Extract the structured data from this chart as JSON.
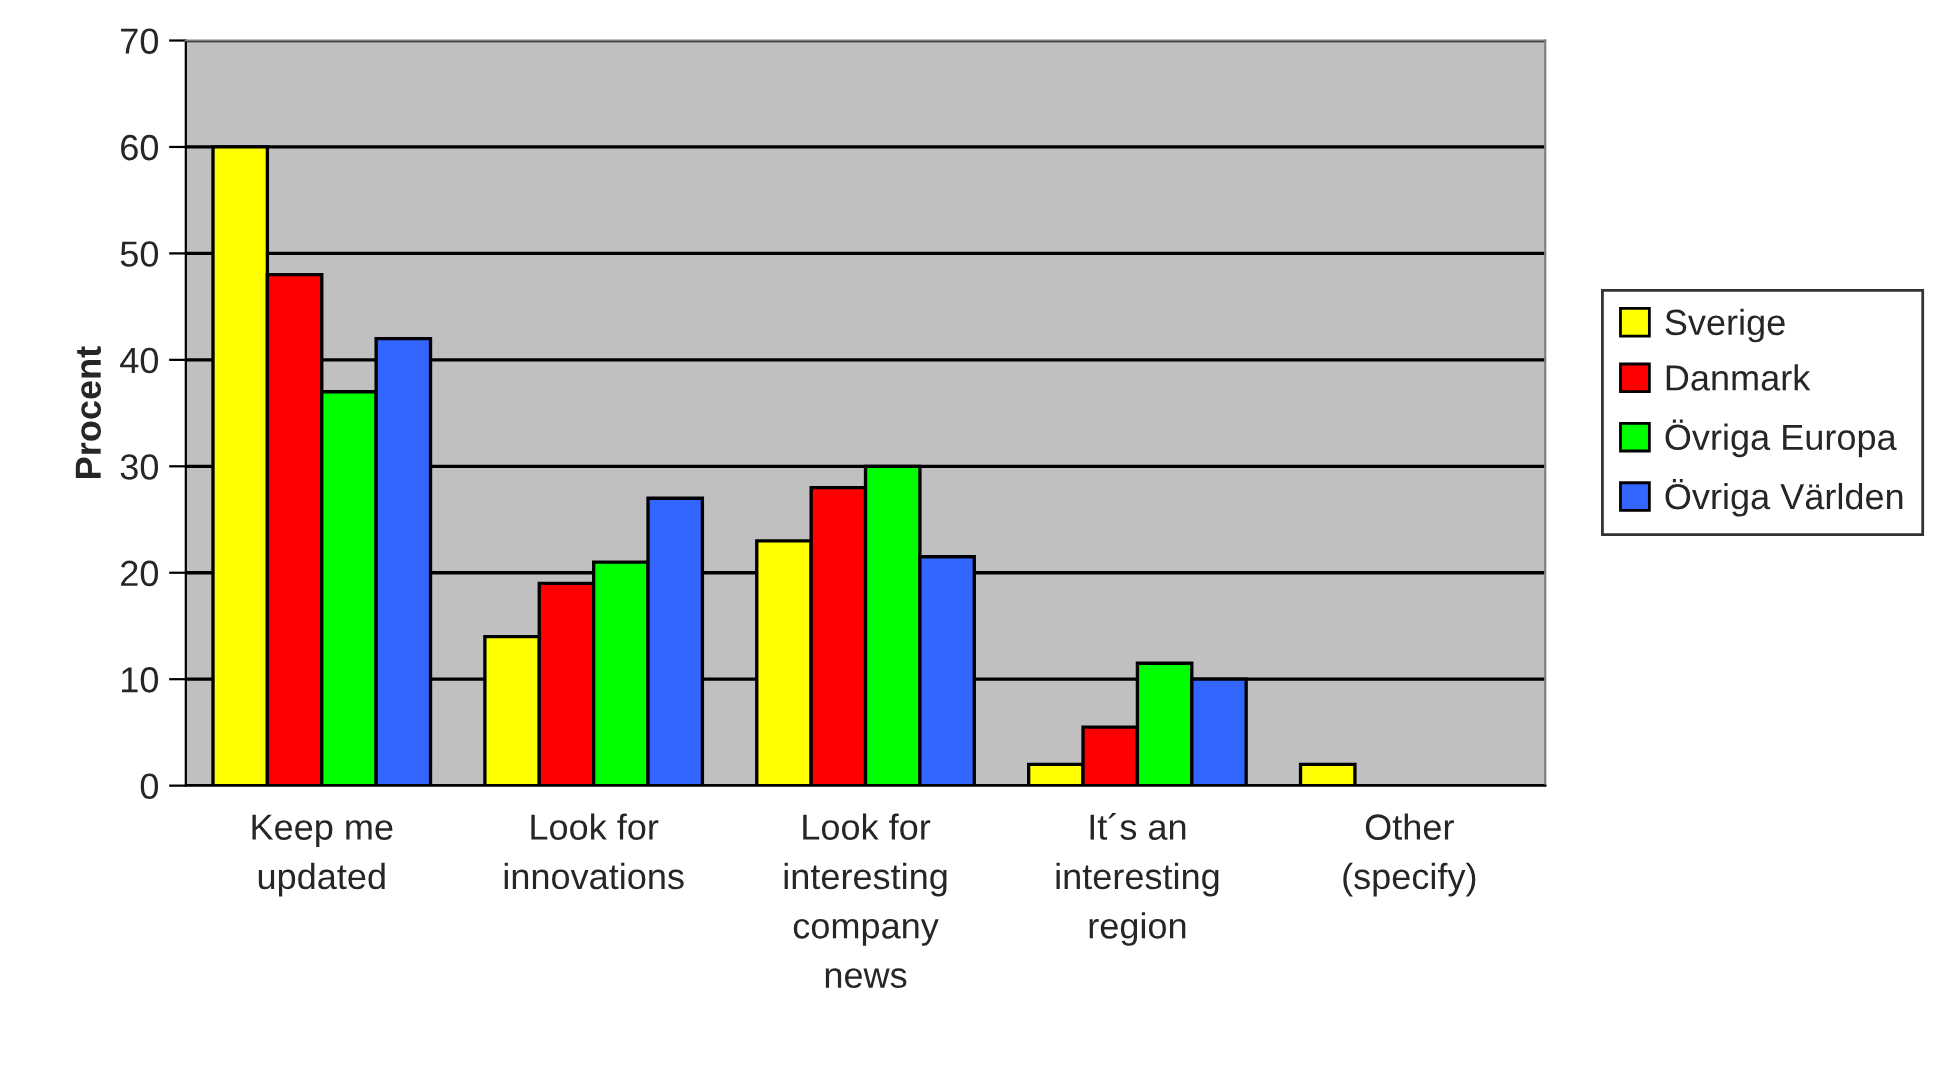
{
  "chart_data": {
    "type": "bar",
    "ylabel": "Procent",
    "categories": [
      "Keep me\nupdated",
      "Look for\ninnovations",
      "Look for\ninteresting\ncompany\nnews",
      "It´s an\ninteresting\nregion",
      "Other\n(specify)"
    ],
    "series": [
      {
        "name": "Sverige",
        "color": "#ffff00",
        "values": [
          60,
          14,
          23,
          2,
          2
        ]
      },
      {
        "name": "Danmark",
        "color": "#ff0000",
        "values": [
          48,
          19,
          28,
          5.5,
          null
        ]
      },
      {
        "name": "Övriga Europa",
        "color": "#00ff00",
        "values": [
          37,
          21,
          30,
          11.5,
          null
        ]
      },
      {
        "name": "Övriga Världen",
        "color": "#3366ff",
        "values": [
          42,
          27,
          21.5,
          10,
          null
        ]
      }
    ],
    "ylim": [
      0,
      70
    ],
    "yticks": [
      0,
      10,
      20,
      30,
      40,
      50,
      60,
      70
    ],
    "grid": "y",
    "legend": "right"
  }
}
